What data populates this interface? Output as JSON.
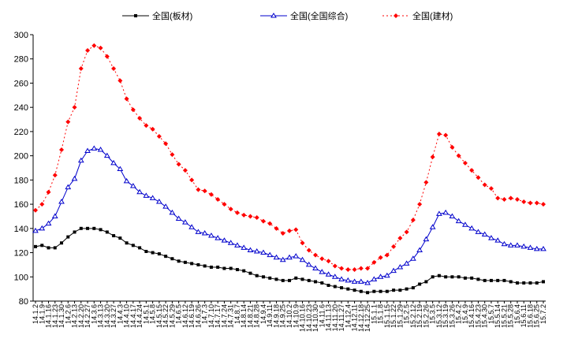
{
  "chart_data": {
    "type": "line",
    "categories": [
      "14.1.2",
      "14.1.9",
      "14.1.16",
      "14.1.23",
      "14.1.30",
      "14.2.6",
      "14.2.13",
      "14.2.20",
      "14.2.27",
      "14.3.6",
      "14.3.13",
      "14.3.20",
      "14.3.27",
      "14.4.3",
      "14.4.10",
      "14.4.17",
      "14.4.24",
      "14.5.1",
      "14.5.8",
      "14.5.15",
      "14.5.22",
      "14.5.29",
      "14.6.5",
      "14.6.12",
      "14.6.19",
      "14.6.26",
      "14.7.3",
      "14.7.10",
      "14.7.17",
      "14.7.24",
      "14.7.31",
      "14.8.7",
      "14.8.14",
      "14.8.21",
      "14.8.28",
      "14.9.4",
      "14.9.11",
      "14.9.18",
      "14.9.25",
      "14.10.2",
      "14.10.9",
      "14.10.16",
      "14.10.23",
      "14.10.30",
      "14.11.6",
      "14.11.13",
      "14.11.20",
      "14.11.27",
      "14.12.4",
      "14.12.11",
      "14.12.18",
      "14.12.25",
      "15.1.1",
      "15.1.8",
      "15.1.15",
      "15.1.22",
      "15.1.29",
      "15.2.5",
      "15.2.12",
      "15.2.19",
      "15.2.26",
      "15.3.5",
      "15.3.12",
      "15.3.19",
      "15.3.26",
      "15.4.2",
      "15.4.9",
      "15.4.16",
      "15.4.23",
      "15.4.30",
      "15.5.7",
      "15.5.14",
      "15.5.21",
      "15.5.28",
      "15.6.4",
      "15.6.11",
      "15.6.18",
      "15.6.25",
      "15.7.2"
    ],
    "series": [
      {
        "name": "全国(板材)",
        "color": "#000000",
        "marker": "square",
        "line_style": "solid",
        "values": [
          125,
          126,
          124,
          124,
          128,
          133,
          137,
          140,
          140,
          140,
          139,
          137,
          134,
          132,
          128,
          126,
          124,
          121,
          120,
          119,
          117,
          115,
          113,
          112,
          111,
          110,
          109,
          108,
          108,
          107,
          107,
          106,
          105,
          103,
          101,
          100,
          99,
          98,
          97,
          97,
          99,
          98,
          97,
          96,
          95,
          93,
          92,
          91,
          90,
          89,
          88,
          87,
          88,
          88,
          88,
          89,
          89,
          90,
          91,
          94,
          96,
          100,
          101,
          100,
          100,
          100,
          99,
          99,
          98,
          97,
          97,
          97,
          97,
          96,
          95,
          95,
          95,
          95,
          96
        ]
      },
      {
        "name": "全国(全国综合)",
        "color": "#0000cc",
        "marker": "triangle",
        "line_style": "solid",
        "values": [
          138,
          140,
          144,
          150,
          162,
          174,
          181,
          196,
          204,
          206,
          205,
          200,
          194,
          189,
          179,
          175,
          170,
          167,
          165,
          162,
          158,
          153,
          148,
          145,
          141,
          137,
          136,
          134,
          132,
          130,
          128,
          126,
          124,
          122,
          121,
          120,
          118,
          116,
          114,
          116,
          117,
          114,
          110,
          107,
          104,
          102,
          100,
          98,
          97,
          96,
          96,
          95,
          98,
          100,
          101,
          105,
          108,
          111,
          115,
          122,
          131,
          141,
          152,
          153,
          150,
          146,
          143,
          140,
          137,
          135,
          132,
          130,
          127,
          126,
          126,
          125,
          124,
          123,
          123
        ]
      },
      {
        "name": "全国(建材)",
        "color": "#ff0000",
        "marker": "diamond",
        "line_style": "dotted",
        "values": [
          155,
          160,
          170,
          184,
          205,
          228,
          240,
          272,
          287,
          291,
          289,
          282,
          272,
          262,
          247,
          238,
          231,
          225,
          222,
          216,
          210,
          201,
          193,
          188,
          180,
          172,
          171,
          168,
          164,
          160,
          156,
          153,
          151,
          150,
          149,
          146,
          144,
          140,
          136,
          138,
          139,
          128,
          122,
          118,
          115,
          113,
          109,
          107,
          106,
          106,
          107,
          107,
          112,
          116,
          118,
          125,
          132,
          137,
          147,
          160,
          178,
          199,
          218,
          217,
          207,
          200,
          194,
          188,
          182,
          176,
          173,
          165,
          164,
          165,
          164,
          162,
          161,
          161,
          160
        ]
      }
    ],
    "ylim": [
      80,
      300
    ],
    "yticks": [
      80,
      100,
      120,
      140,
      160,
      180,
      200,
      220,
      240,
      260,
      280,
      300
    ],
    "grid": false,
    "legend": "top"
  }
}
